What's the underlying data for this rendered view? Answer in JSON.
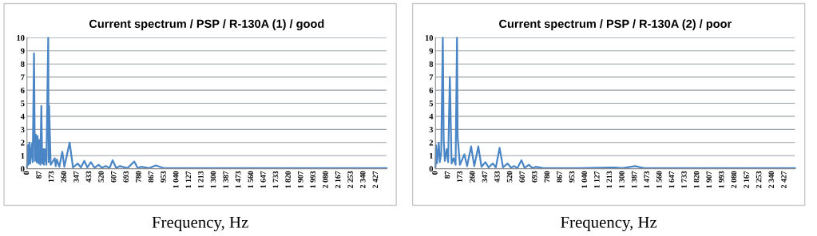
{
  "chart_data": [
    {
      "type": "line",
      "title": "Current spectrum / PSP / R-130A (1) / good",
      "xlabel": "Frequency, Hz",
      "grid": "y",
      "xlim": [
        0,
        2500
      ],
      "ylim": [
        0,
        10
      ],
      "yticks": [
        0,
        1,
        2,
        3,
        4,
        5,
        6,
        7,
        8,
        9,
        10
      ],
      "xticks": [
        0,
        87,
        173,
        260,
        347,
        433,
        520,
        607,
        693,
        780,
        867,
        953,
        {
          "value": 1040,
          "label": "1 040"
        },
        {
          "value": 1127,
          "label": "1 127"
        },
        {
          "value": 1213,
          "label": "1 213"
        },
        {
          "value": 1300,
          "label": "1 300"
        },
        {
          "value": 1387,
          "label": "1 387"
        },
        {
          "value": 1473,
          "label": "1 473"
        },
        {
          "value": 1560,
          "label": "1 560"
        },
        {
          "value": 1647,
          "label": "1 647"
        },
        {
          "value": 1733,
          "label": "1 733"
        },
        {
          "value": 1820,
          "label": "1 820"
        },
        {
          "value": 1907,
          "label": "1 907"
        },
        {
          "value": 1993,
          "label": "1 993"
        },
        {
          "value": 2080,
          "label": "2 080"
        },
        {
          "value": 2167,
          "label": "2 167"
        },
        {
          "value": 2253,
          "label": "2 253"
        },
        {
          "value": 2340,
          "label": "2 340"
        },
        {
          "value": 2427,
          "label": "2 427"
        }
      ],
      "series": [
        {
          "color": "#4a86c5",
          "x": [
            0,
            6,
            10,
            17,
            22,
            34,
            40,
            49,
            55,
            62,
            68,
            74,
            80,
            87,
            93,
            100,
            106,
            113,
            118,
            124,
            135,
            148,
            151,
            154,
            165,
            193,
            200,
            208,
            225,
            246,
            260,
            297,
            320,
            353,
            375,
            399,
            420,
            444,
            470,
            499,
            520,
            549,
            575,
            596,
            620,
            647,
            700,
            746,
            770,
            793,
            850,
            896,
            950,
            1100,
            1300,
            1500,
            1700,
            1900,
            2100,
            2300,
            2500
          ],
          "values": [
            0.1,
            1.8,
            0.3,
            2.0,
            0.4,
            1.9,
            0.5,
            8.8,
            0.6,
            2.6,
            0.5,
            2.5,
            0.4,
            2.2,
            0.3,
            4.8,
            0.4,
            1.5,
            0.3,
            1.5,
            0.3,
            10,
            0.5,
            4.8,
            0.3,
            0.8,
            0.2,
            0.7,
            0.15,
            1.3,
            0.15,
            2.0,
            0.1,
            0.4,
            0.1,
            0.6,
            0.1,
            0.5,
            0.08,
            0.3,
            0.08,
            0.2,
            0.06,
            0.65,
            0.06,
            0.2,
            0.05,
            0.55,
            0.05,
            0.15,
            0.05,
            0.25,
            0.05,
            0.05,
            0.05,
            0.05,
            0.05,
            0.05,
            0.05,
            0.05,
            0.05
          ]
        }
      ]
    },
    {
      "type": "line",
      "title": "Current spectrum / PSP / R-130A (2) / poor",
      "xlabel": "Frequency, Hz",
      "grid": "y",
      "xlim": [
        0,
        2500
      ],
      "ylim": [
        0,
        10
      ],
      "yticks": [
        0,
        1,
        2,
        3,
        4,
        5,
        6,
        7,
        8,
        9,
        10
      ],
      "xticks": [
        0,
        87,
        173,
        260,
        347,
        433,
        520,
        607,
        693,
        780,
        867,
        953,
        {
          "value": 1040,
          "label": "1 040"
        },
        {
          "value": 1127,
          "label": "1 127"
        },
        {
          "value": 1213,
          "label": "1 213"
        },
        {
          "value": 1300,
          "label": "1 300"
        },
        {
          "value": 1387,
          "label": "1 387"
        },
        {
          "value": 1473,
          "label": "1 473"
        },
        {
          "value": 1560,
          "label": "1 560"
        },
        {
          "value": 1647,
          "label": "1 647"
        },
        {
          "value": 1733,
          "label": "1 733"
        },
        {
          "value": 1820,
          "label": "1 820"
        },
        {
          "value": 1907,
          "label": "1 907"
        },
        {
          "value": 1993,
          "label": "1 993"
        },
        {
          "value": 2080,
          "label": "2 080"
        },
        {
          "value": 2167,
          "label": "2 167"
        },
        {
          "value": 2253,
          "label": "2 253"
        },
        {
          "value": 2340,
          "label": "2 340"
        },
        {
          "value": 2427,
          "label": "2 427"
        }
      ],
      "series": [
        {
          "color": "#4a86c5",
          "x": [
            0,
            4,
            10,
            23,
            30,
            40,
            51,
            57,
            65,
            79,
            88,
            100,
            112,
            126,
            140,
            150,
            154,
            170,
            201,
            220,
            248,
            270,
            298,
            320,
            347,
            370,
            398,
            420,
            446,
            470,
            501,
            525,
            547,
            570,
            598,
            620,
            650,
            675,
            697,
            750,
            1000,
            1250,
            1300,
            1388,
            1450,
            1700,
            1900,
            2100,
            2300,
            2500
          ],
          "values": [
            0.1,
            1.8,
            0.4,
            2.0,
            0.5,
            1.2,
            10,
            2.3,
            0.6,
            1.5,
            0.5,
            7.0,
            0.4,
            0.8,
            0.3,
            10,
            2.5,
            0.3,
            1.1,
            0.2,
            1.7,
            0.2,
            1.7,
            0.15,
            0.5,
            0.1,
            0.4,
            0.1,
            1.6,
            0.1,
            0.4,
            0.08,
            0.2,
            0.06,
            0.65,
            0.06,
            0.3,
            0.05,
            0.15,
            0.05,
            0.05,
            0.1,
            0.05,
            0.2,
            0.05,
            0.05,
            0.05,
            0.05,
            0.05,
            0.05
          ]
        }
      ]
    }
  ]
}
